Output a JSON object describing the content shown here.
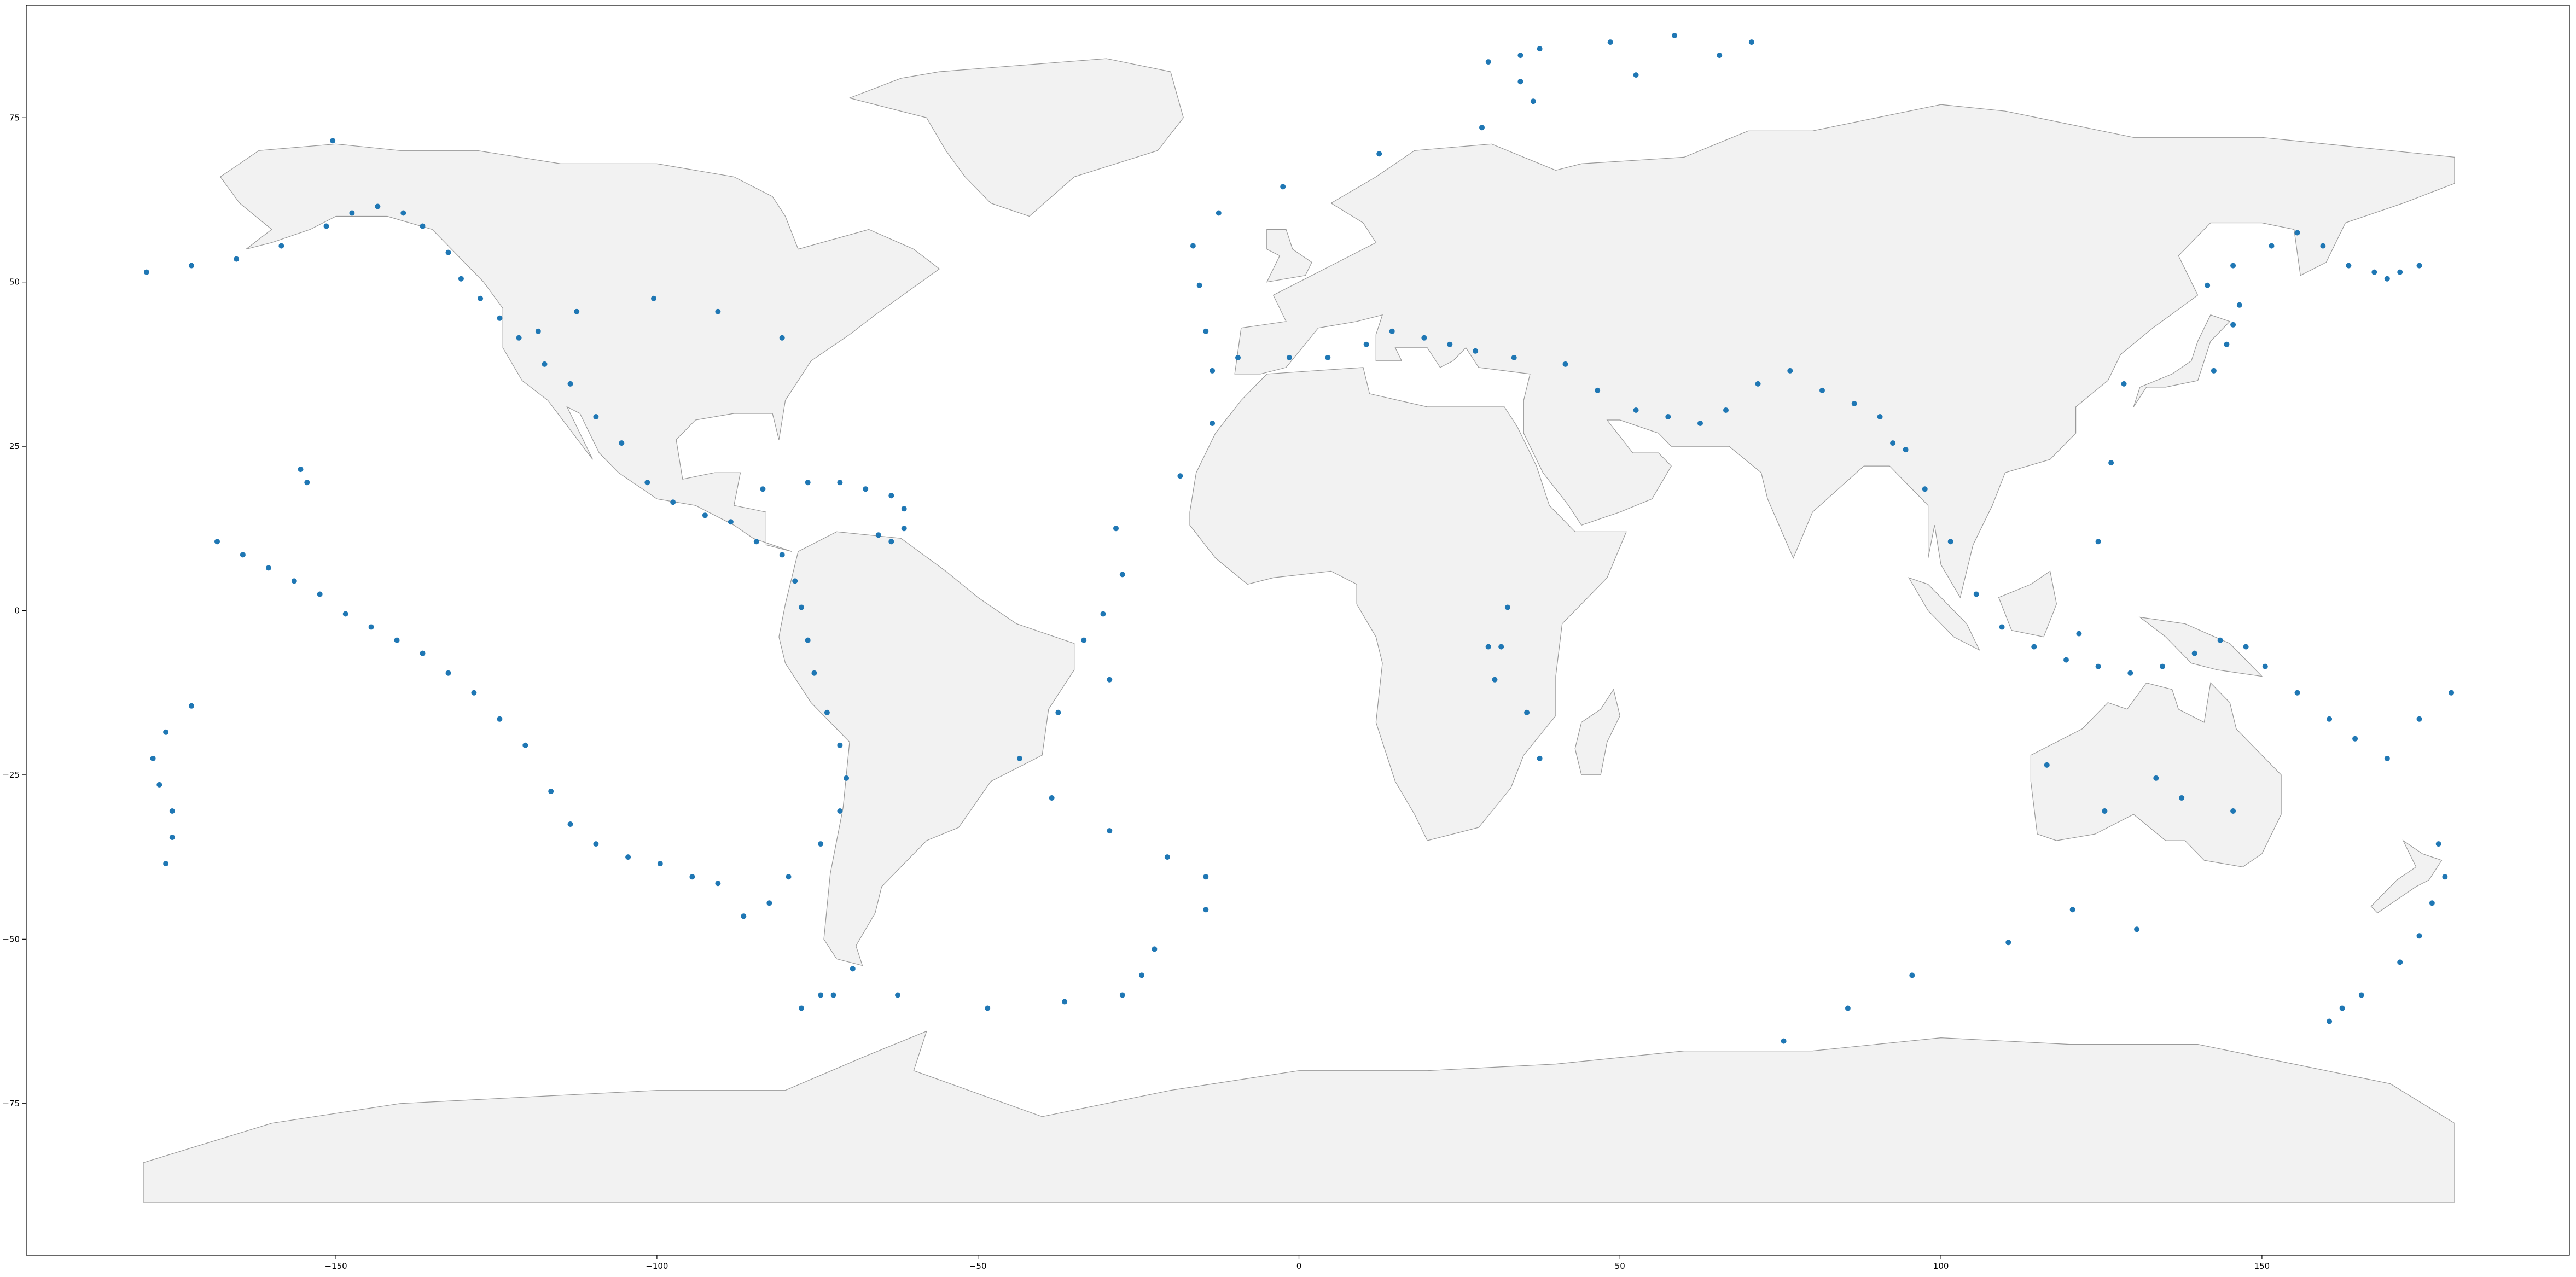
{
  "chart_data": {
    "type": "scatter",
    "title": "",
    "xlabel": "",
    "ylabel": "",
    "xlim": [
      -180,
      180
    ],
    "ylim": [
      -90,
      90
    ],
    "x_ticks": [
      -150,
      -100,
      -50,
      0,
      50,
      100,
      150
    ],
    "y_ticks": [
      75,
      50,
      25,
      0,
      -25,
      -50,
      -75
    ],
    "x_tick_labels": [
      "−150",
      "−100",
      "−50",
      "0",
      "50",
      "100",
      "150"
    ],
    "y_tick_labels": [
      "75",
      "50",
      "25",
      "0",
      "−25",
      "−50",
      "−75"
    ],
    "grid": false,
    "legend": "none",
    "land_color": "#f2f2f2",
    "coast_color": "#999999",
    "point_color": "#1f77b4",
    "series": [
      {
        "x": [
          -179.5,
          -172.5,
          -165.5,
          -158.5,
          -151.5,
          -147.5,
          -143.5,
          -139.5,
          -136.5,
          -132.5,
          -130.5,
          -127.5,
          -124.5,
          -121.5,
          -117.5,
          -113.5,
          -109.5,
          -105.5,
          -101.5,
          -97.5,
          -92.5,
          -88.5,
          -84.5,
          -80.5,
          -78.5,
          -77.5,
          -76.5,
          -75.5,
          -73.5,
          -71.5,
          -70.5,
          -71.5,
          -74.5,
          -79.5,
          -82.5,
          -86.5,
          -90.5,
          -94.5,
          -99.5,
          -104.5,
          -109.5,
          -113.5,
          -116.5,
          -120.5,
          -124.5,
          -128.5,
          -132.5,
          -136.5,
          -140.5,
          -144.5,
          -148.5,
          -152.5,
          -156.5,
          -160.5,
          -164.5,
          -168.5,
          -172.5,
          -176.5,
          -178.5,
          -177.5,
          -175.5,
          -175.5,
          -176.5,
          -154.5,
          -155.5,
          -83.5,
          -76.5,
          -71.5,
          -67.5,
          -63.5,
          -61.5,
          -61.5,
          -63.5,
          -65.5,
          -69.5,
          -74.5,
          -77.5,
          -72.5,
          -62.5,
          -48.5,
          -36.5,
          -27.5,
          -24.5,
          -22.5,
          -14.5,
          -14.5,
          -20.5,
          -29.5,
          -38.5,
          -43.5,
          -37.5,
          -29.5,
          -33.5,
          -30.5,
          -27.5,
          -28.5,
          -18.5,
          -13.5,
          -13.5,
          -14.5,
          -15.5,
          -16.5,
          -12.5,
          -2.5,
          12.5,
          28.5,
          36.5,
          52.5,
          65.5,
          70.5,
          58.5,
          48.5,
          37.5,
          34.5,
          29.5,
          34.5,
          -9.5,
          -1.5,
          4.5,
          10.5,
          14.5,
          19.5,
          23.5,
          27.5,
          33.5,
          41.5,
          46.5,
          52.5,
          57.5,
          62.5,
          66.5,
          71.5,
          76.5,
          81.5,
          86.5,
          90.5,
          94.5,
          97.5,
          101.5,
          105.5,
          109.5,
          114.5,
          119.5,
          124.5,
          129.5,
          134.5,
          139.5,
          143.5,
          147.5,
          150.5,
          155.5,
          160.5,
          164.5,
          169.5,
          174.5,
          179.5,
          121.5,
          124.5,
          126.5,
          128.5,
          142.5,
          144.5,
          145.5,
          146.5,
          141.5,
          145.5,
          151.5,
          155.5,
          159.5,
          163.5,
          167.5,
          169.5,
          171.5,
          174.5,
          177.5,
          178.5,
          176.5,
          174.5,
          171.5,
          165.5,
          162.5,
          160.5,
          130.5,
          110.5,
          95.5,
          85.5,
          75.5,
          120.5,
          125.5,
          30.5,
          31.5,
          32.5,
          29.5,
          35.5,
          37.5,
          133.5,
          137.5,
          145.5,
          116.5,
          92.5,
          -118.5,
          -112.5,
          -100.5,
          -90.5,
          -80.5,
          -150.5
        ],
        "y": [
          51.5,
          52.5,
          53.5,
          55.5,
          58.5,
          60.5,
          61.5,
          60.5,
          58.5,
          54.5,
          50.5,
          47.5,
          44.5,
          41.5,
          37.5,
          34.5,
          29.5,
          25.5,
          19.5,
          16.5,
          14.5,
          13.5,
          10.5,
          8.5,
          4.5,
          0.5,
          -4.5,
          -9.5,
          -15.5,
          -20.5,
          -25.5,
          -30.5,
          -35.5,
          -40.5,
          -44.5,
          -46.5,
          -41.5,
          -40.5,
          -38.5,
          -37.5,
          -35.5,
          -32.5,
          -27.5,
          -20.5,
          -16.5,
          -12.5,
          -9.5,
          -6.5,
          -4.5,
          -2.5,
          -0.5,
          2.5,
          4.5,
          6.5,
          8.5,
          10.5,
          -14.5,
          -18.5,
          -22.5,
          -26.5,
          -30.5,
          -34.5,
          -38.5,
          19.5,
          21.5,
          18.5,
          19.5,
          19.5,
          18.5,
          17.5,
          15.5,
          12.5,
          10.5,
          11.5,
          -54.5,
          -58.5,
          -60.5,
          -58.5,
          -58.5,
          -60.5,
          -59.5,
          -58.5,
          -55.5,
          -51.5,
          -45.5,
          -40.5,
          -37.5,
          -33.5,
          -28.5,
          -22.5,
          -15.5,
          -10.5,
          -4.5,
          -0.5,
          5.5,
          12.5,
          20.5,
          28.5,
          36.5,
          42.5,
          49.5,
          55.5,
          60.5,
          64.5,
          69.5,
          73.5,
          77.5,
          81.5,
          84.5,
          86.5,
          87.5,
          86.5,
          85.5,
          84.5,
          83.5,
          80.5,
          38.5,
          38.5,
          38.5,
          40.5,
          42.5,
          41.5,
          40.5,
          39.5,
          38.5,
          37.5,
          33.5,
          30.5,
          29.5,
          28.5,
          30.5,
          34.5,
          36.5,
          33.5,
          31.5,
          29.5,
          24.5,
          18.5,
          10.5,
          2.5,
          -2.5,
          -5.5,
          -7.5,
          -8.5,
          -9.5,
          -8.5,
          -6.5,
          -4.5,
          -5.5,
          -8.5,
          -12.5,
          -16.5,
          -19.5,
          -22.5,
          -16.5,
          -12.5,
          -3.5,
          10.5,
          22.5,
          34.5,
          36.5,
          40.5,
          43.5,
          46.5,
          49.5,
          52.5,
          55.5,
          57.5,
          55.5,
          52.5,
          51.5,
          50.5,
          51.5,
          52.5,
          -35.5,
          -40.5,
          -44.5,
          -49.5,
          -53.5,
          -58.5,
          -60.5,
          -62.5,
          -48.5,
          -50.5,
          -55.5,
          -60.5,
          -65.5,
          -45.5,
          -30.5,
          -10.5,
          -5.5,
          0.5,
          -5.5,
          -15.5,
          -22.5,
          -25.5,
          -28.5,
          -30.5,
          -23.5,
          25.5,
          42.5,
          45.5,
          47.5,
          45.5,
          41.5,
          71.5
        ]
      }
    ]
  }
}
